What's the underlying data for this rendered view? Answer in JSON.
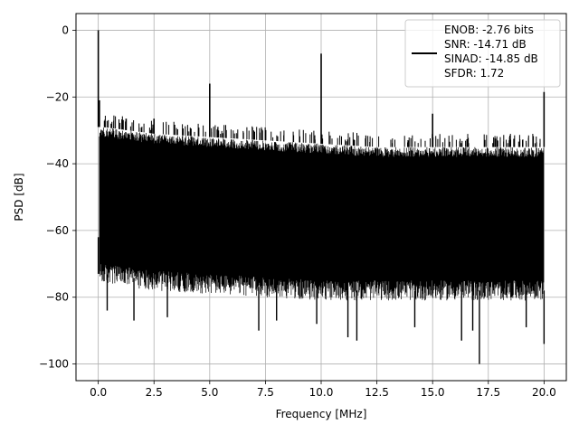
{
  "chart_data": {
    "type": "line",
    "title": "",
    "xlabel": "Frequency [MHz]",
    "ylabel": "PSD [dB]",
    "xlim": [
      -1,
      21
    ],
    "ylim": [
      -105,
      5
    ],
    "xticks": [
      0,
      2.5,
      5,
      7.5,
      10,
      12.5,
      15,
      17.5,
      20
    ],
    "xtick_labels": [
      "0.0",
      "2.5",
      "5.0",
      "7.5",
      "10.0",
      "12.5",
      "15.0",
      "17.5",
      "20.0"
    ],
    "yticks": [
      0,
      -20,
      -40,
      -60,
      -80,
      -100
    ],
    "ytick_labels": [
      "0",
      "−20",
      "−40",
      "−60",
      "−80",
      "−100"
    ],
    "grid": true,
    "legend_position": "top-right",
    "series": [
      {
        "name": "ENOB: -2.76 bits\nSNR: -14.71 dB\nSINAD: -14.85 dB\nSFDR: 1.72",
        "color": "#000000",
        "noise_floor_upper": [
          {
            "x": 0.2,
            "y": -29
          },
          {
            "x": 2.5,
            "y": -31
          },
          {
            "x": 5,
            "y": -32
          },
          {
            "x": 7.5,
            "y": -33
          },
          {
            "x": 10,
            "y": -34
          },
          {
            "x": 12.5,
            "y": -35
          },
          {
            "x": 15,
            "y": -35
          },
          {
            "x": 17.5,
            "y": -35
          },
          {
            "x": 20,
            "y": -35
          }
        ],
        "noise_floor_lower": [
          {
            "x": 0.2,
            "y": -73
          },
          {
            "x": 2.5,
            "y": -75
          },
          {
            "x": 5,
            "y": -76
          },
          {
            "x": 7.5,
            "y": -77
          },
          {
            "x": 10,
            "y": -78
          },
          {
            "x": 12.5,
            "y": -78
          },
          {
            "x": 15,
            "y": -78
          },
          {
            "x": 17.5,
            "y": -78
          },
          {
            "x": 20,
            "y": -78
          }
        ],
        "peaks": [
          {
            "x": 0.0,
            "y": 0
          },
          {
            "x": 0.05,
            "y": -21
          },
          {
            "x": 1.25,
            "y": -26.5
          },
          {
            "x": 2.5,
            "y": -26.5
          },
          {
            "x": 5.0,
            "y": -16
          },
          {
            "x": 10.0,
            "y": -7
          },
          {
            "x": 15.0,
            "y": -25
          },
          {
            "x": 20.0,
            "y": -18.5
          }
        ],
        "dips": [
          {
            "x": 0.0,
            "y": -62
          },
          {
            "x": 0.4,
            "y": -84
          },
          {
            "x": 1.6,
            "y": -87
          },
          {
            "x": 3.1,
            "y": -86
          },
          {
            "x": 7.2,
            "y": -90
          },
          {
            "x": 8.0,
            "y": -87
          },
          {
            "x": 9.8,
            "y": -88
          },
          {
            "x": 11.2,
            "y": -92
          },
          {
            "x": 11.6,
            "y": -93
          },
          {
            "x": 14.2,
            "y": -89
          },
          {
            "x": 16.3,
            "y": -93
          },
          {
            "x": 16.8,
            "y": -90
          },
          {
            "x": 17.1,
            "y": -100
          },
          {
            "x": 19.2,
            "y": -89
          },
          {
            "x": 20.0,
            "y": -94
          }
        ]
      }
    ]
  }
}
